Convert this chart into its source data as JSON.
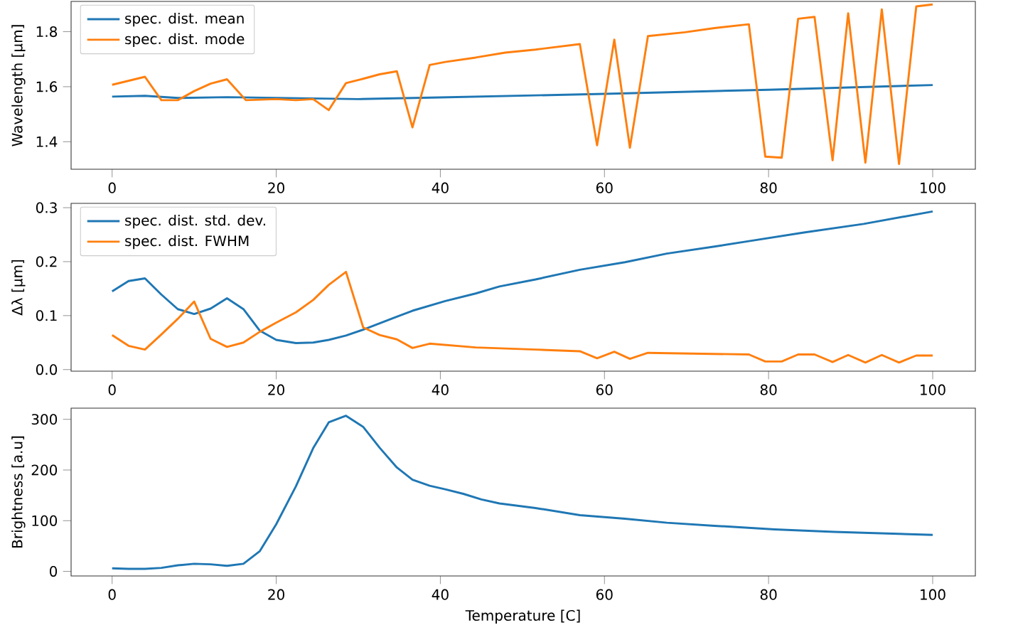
{
  "chart_data": [
    {
      "type": "line",
      "ylabel": "Wavelength [µm]",
      "xlim": [
        -5,
        105.2
      ],
      "ylim": [
        1.3,
        1.91
      ],
      "xticks": [
        0,
        20,
        40,
        60,
        80,
        100
      ],
      "yticks": [
        1.4,
        1.6,
        1.8
      ],
      "legend": "top left",
      "series": [
        {
          "name": "spec. dist. mean",
          "color": "#1f77b4",
          "x": [
            0,
            4,
            8,
            14,
            30,
            40,
            60,
            80,
            100
          ],
          "values": [
            1.564,
            1.567,
            1.559,
            1.562,
            1.555,
            1.561,
            1.574,
            1.589,
            1.606
          ]
        },
        {
          "name": "spec. dist. mode",
          "color": "#ff7f0e",
          "x": [
            0,
            4,
            6,
            8,
            10,
            12,
            14,
            16.3,
            20,
            22.4,
            24.5,
            26.4,
            28.5,
            30.6,
            32.6,
            34.7,
            36.6,
            38.7,
            40.6,
            44.3,
            47.9,
            51.6,
            57,
            59.1,
            61.2,
            63.1,
            65.3,
            69.8,
            73.4,
            77.6,
            79.6,
            81.6,
            83.6,
            85.6,
            87.8,
            89.7,
            91.8,
            93.8,
            95.9,
            98,
            100
          ],
          "values": [
            1.607,
            1.636,
            1.551,
            1.551,
            1.584,
            1.611,
            1.627,
            1.551,
            1.555,
            1.551,
            1.555,
            1.515,
            1.613,
            1.629,
            1.645,
            1.656,
            1.452,
            1.679,
            1.69,
            1.706,
            1.724,
            1.735,
            1.755,
            1.387,
            1.771,
            1.378,
            1.784,
            1.798,
            1.813,
            1.827,
            1.346,
            1.342,
            1.847,
            1.854,
            1.333,
            1.867,
            1.324,
            1.881,
            1.319,
            1.892,
            1.899
          ]
        }
      ]
    },
    {
      "type": "line",
      "ylabel": "Δλ [µm]",
      "xlim": [
        -5,
        105.2
      ],
      "ylim": [
        -0.003,
        0.308
      ],
      "xticks": [
        0,
        20,
        40,
        60,
        80,
        100
      ],
      "yticks": [
        {
          "value": 0,
          "label": "0.0"
        },
        0.1,
        0.2,
        0.3
      ],
      "legend": "top left",
      "series": [
        {
          "name": "spec. dist. std. dev.",
          "color": "#1f77b4",
          "x": [
            0,
            2,
            4,
            6,
            8,
            10,
            12,
            14,
            16,
            18,
            20,
            22.4,
            24.5,
            26.4,
            28.5,
            30.6,
            34.7,
            36.6,
            40.6,
            44.3,
            47.2,
            51.6,
            57,
            62.5,
            67.6,
            73.4,
            77.6,
            84.3,
            91.6,
            100
          ],
          "values": [
            0.145,
            0.164,
            0.169,
            0.139,
            0.112,
            0.103,
            0.113,
            0.132,
            0.112,
            0.072,
            0.055,
            0.049,
            0.05,
            0.055,
            0.063,
            0.074,
            0.098,
            0.109,
            0.127,
            0.141,
            0.154,
            0.167,
            0.185,
            0.199,
            0.215,
            0.228,
            0.238,
            0.254,
            0.27,
            0.293
          ]
        },
        {
          "name": "spec. dist. FWHM",
          "color": "#ff7f0e",
          "x": [
            0,
            2,
            4,
            6,
            8,
            10,
            12,
            14,
            16,
            18,
            20,
            22.4,
            24.5,
            26.4,
            28.5,
            30.6,
            32.6,
            34.7,
            36.6,
            38.7,
            44.3,
            51.6,
            57,
            59.1,
            61.2,
            63.1,
            65.3,
            77.6,
            79.6,
            81.6,
            83.6,
            85.6,
            87.8,
            89.7,
            91.8,
            93.8,
            95.9,
            98,
            100
          ],
          "values": [
            0.064,
            0.044,
            0.037,
            0.065,
            0.094,
            0.126,
            0.057,
            0.042,
            0.05,
            0.07,
            0.087,
            0.106,
            0.129,
            0.157,
            0.181,
            0.078,
            0.064,
            0.056,
            0.04,
            0.048,
            0.041,
            0.037,
            0.034,
            0.021,
            0.033,
            0.02,
            0.031,
            0.028,
            0.015,
            0.015,
            0.028,
            0.028,
            0.014,
            0.027,
            0.013,
            0.027,
            0.013,
            0.026,
            0.026
          ]
        }
      ]
    },
    {
      "type": "line",
      "xlabel": "Temperature [C]",
      "ylabel": "Brightness [a.u]",
      "xlim": [
        -5,
        105.2
      ],
      "ylim": [
        -9,
        322
      ],
      "xticks": [
        0,
        20,
        40,
        60,
        80,
        100
      ],
      "yticks": [
        0,
        100,
        200,
        300
      ],
      "series": [
        {
          "color": "#1f77b4",
          "x": [
            0,
            2,
            4,
            6,
            8,
            10,
            12,
            14,
            16,
            18,
            20,
            22.4,
            24.5,
            26.4,
            28.5,
            30.6,
            32.6,
            34.7,
            36.6,
            38.7,
            40.6,
            42.8,
            45,
            47.2,
            51.6,
            57,
            62.5,
            67.6,
            73.4,
            80.7,
            88,
            100
          ],
          "values": [
            6,
            5,
            5,
            7,
            12,
            15,
            14,
            11,
            15,
            40,
            93,
            168,
            243,
            294,
            307,
            285,
            244,
            205,
            181,
            169,
            162,
            153,
            142,
            134,
            125,
            111,
            104,
            96,
            90,
            83,
            78,
            72
          ]
        }
      ]
    }
  ]
}
